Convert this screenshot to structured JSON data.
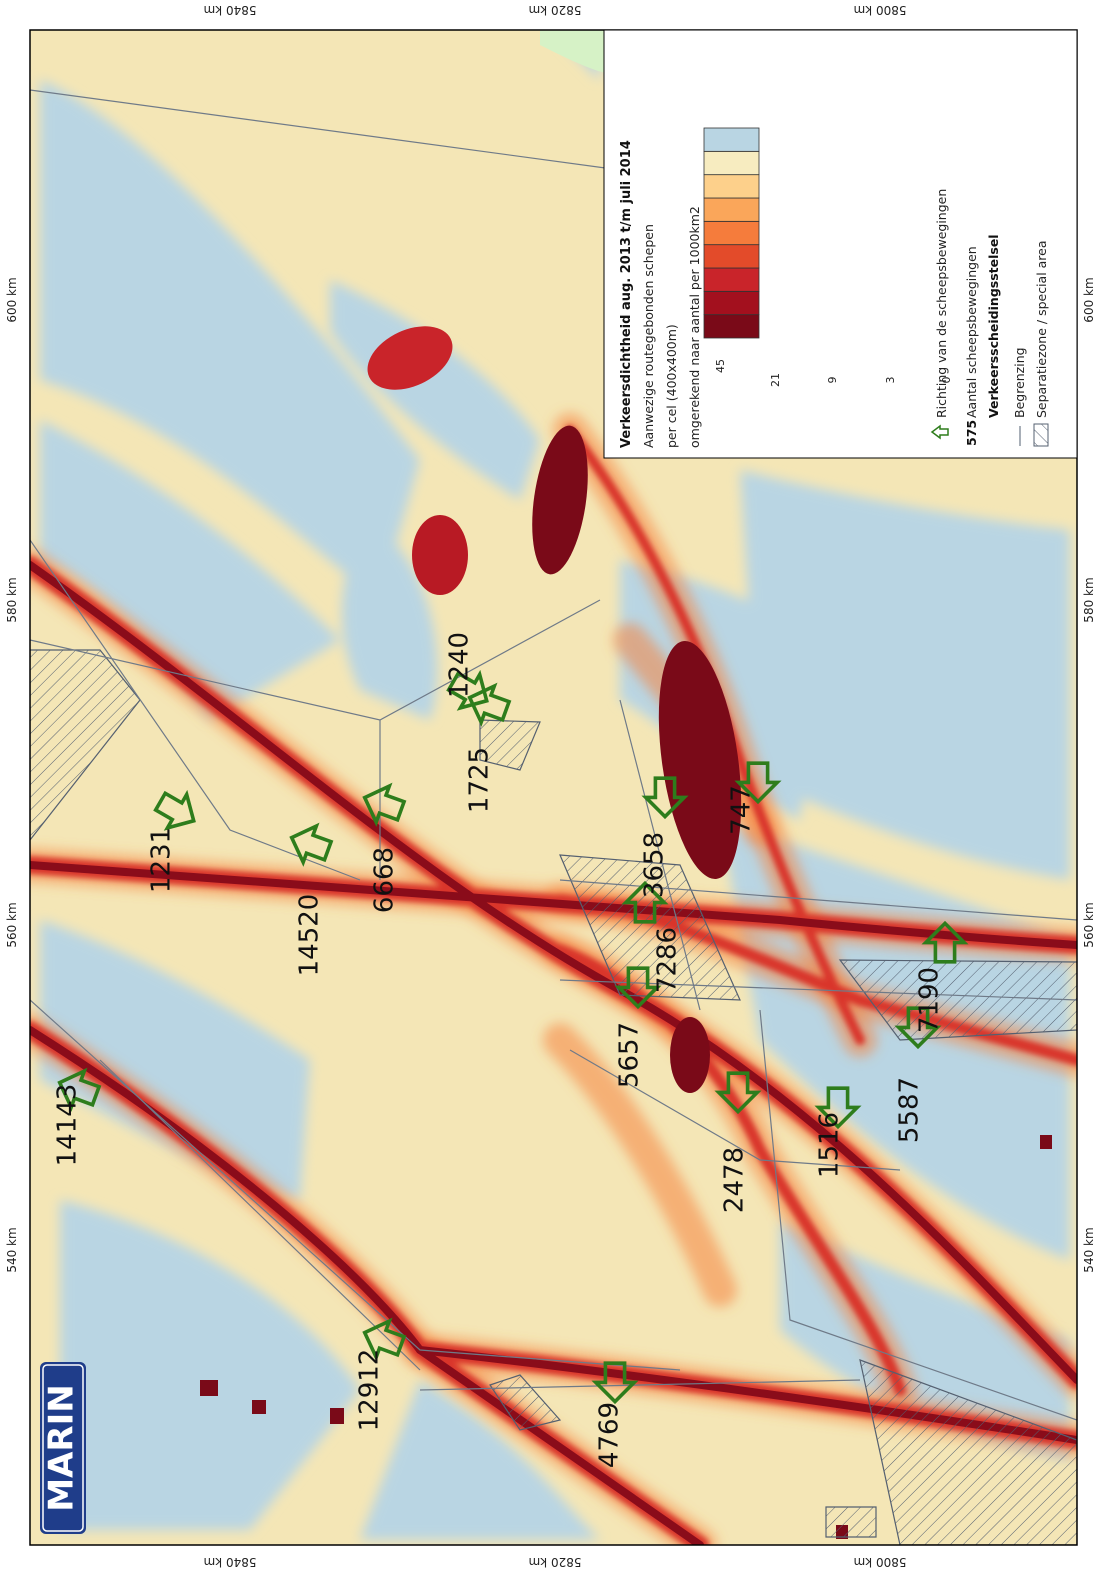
{
  "logo": {
    "text": "MARIN"
  },
  "coords": {
    "top": [
      "5840 km",
      "5820 km",
      "5800 km"
    ],
    "bottom": [
      "5840 km",
      "5820 km",
      "5800 km"
    ],
    "left": [
      "600 km",
      "580 km",
      "560 km",
      "540 km"
    ],
    "right": [
      "600 km",
      "580 km",
      "560 km",
      "540 km"
    ]
  },
  "legend": {
    "title": "Verkeersdichtheid aug. 2013 t/m juli 2014",
    "line1": "Aanwezige routegebonden schepen",
    "line2": "per cel (400x400m)",
    "line3": "omgerekend naar aantal per 1000km2",
    "scale": {
      "ticks": [
        "45",
        "21",
        "9",
        "3",
        "0"
      ],
      "colors": [
        "#7a0a18",
        "#a3101e",
        "#c9242a",
        "#e34b2a",
        "#f57c3c",
        "#faa65a",
        "#fdd08b",
        "#f7ecc0",
        "#b9d5e3"
      ]
    },
    "arrow_item": "Richting van de scheepsbewegingen",
    "count_sample": "575",
    "count_item": "Aantal scheepsbewegingen",
    "section": "Verkeersscheidingsstelsel",
    "boundary_item": "Begrenzing",
    "separation_item": "Separatiezone / special area"
  },
  "counts": [
    "14143",
    "12912",
    "1231",
    "14520",
    "6668",
    "1725",
    "1240",
    "3658",
    "747",
    "7286",
    "5657",
    "7190",
    "5587",
    "2478",
    "1516",
    "4769"
  ],
  "colors": {
    "land": "#d6f2c6",
    "sea_low": "#b9d5e3",
    "sea_mid": "#f7ecc0",
    "lane_core": "#7a0a18",
    "arrow": "#2e7d1c",
    "frame": "#000000"
  }
}
